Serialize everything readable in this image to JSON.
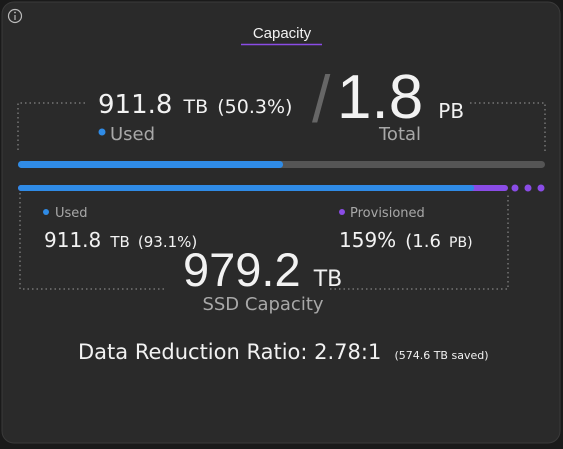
{
  "title": "Capacity",
  "summary": {
    "used": {
      "value": "911.8",
      "unit": "TB",
      "percent": "(50.3%)",
      "label": "Used"
    },
    "separator": "/",
    "total": {
      "value": "1.8",
      "unit": "PB",
      "label": "Total"
    }
  },
  "capacity_bar": {
    "used_percent": 50.3
  },
  "ssd_bar": {
    "used_percent": 93.1
  },
  "ssd": {
    "used": {
      "label": "Used",
      "value": "911.8",
      "unit": "TB",
      "percent": "(93.1%)"
    },
    "provisioned": {
      "label": "Provisioned",
      "value": "159%",
      "detail": "(1.6",
      "unit": "PB)"
    },
    "capacity": {
      "value": "979.2",
      "unit": "TB",
      "label": "SSD Capacity"
    }
  },
  "data_reduction": {
    "text": "Data Reduction Ratio: 2.78:1",
    "saved": "(574.6 TB saved)"
  }
}
